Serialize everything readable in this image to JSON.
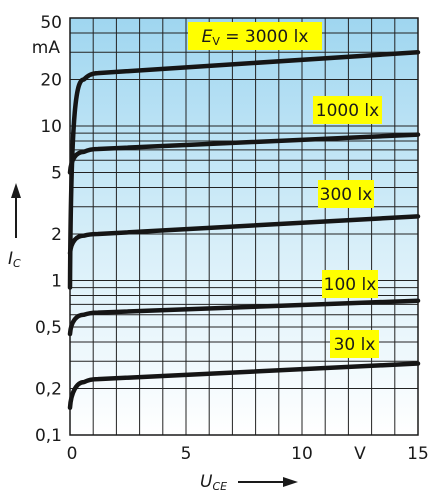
{
  "chart_data": {
    "type": "line",
    "yscale": "log",
    "xlim": [
      0,
      15
    ],
    "ylim": [
      0.1,
      50
    ],
    "xticks": [
      "0",
      "5",
      "10",
      "V",
      "15"
    ],
    "yticks": [
      "50",
      "20",
      "10",
      "5",
      "2",
      "1",
      "0,5",
      "0,2",
      "0,1"
    ],
    "ytick_unit": "mA",
    "xlabel": "U",
    "xlabel_sub": "CE",
    "ylabel": "I",
    "ylabel_sub": "C",
    "grid": true,
    "colors": {
      "background_top": "#9fd6f0",
      "background_bottom": "#ffffff",
      "label_box": "#ffff00",
      "curve": "#151515"
    },
    "series": [
      {
        "label": "E_V = 3000 lx",
        "x": [
          0,
          0.3,
          0.6,
          1.2,
          15
        ],
        "y": [
          0.9,
          15,
          20,
          22,
          30
        ]
      },
      {
        "label": "1000 lx",
        "x": [
          0,
          0.3,
          0.6,
          1.2,
          15
        ],
        "y": [
          5,
          6.2,
          6.8,
          7.1,
          8.8
        ]
      },
      {
        "label": "300 lx",
        "x": [
          0,
          0.3,
          0.6,
          1.2,
          15
        ],
        "y": [
          1.5,
          1.8,
          1.95,
          2.0,
          2.6
        ]
      },
      {
        "label": "100 lx",
        "x": [
          0,
          0.3,
          0.6,
          1.2,
          15
        ],
        "y": [
          0.45,
          0.55,
          0.6,
          0.62,
          0.74
        ]
      },
      {
        "label": "30 lx",
        "x": [
          0,
          0.3,
          0.6,
          1.2,
          15
        ],
        "y": [
          0.15,
          0.19,
          0.22,
          0.23,
          0.29
        ]
      }
    ],
    "curve_labels": [
      {
        "prefix": "E",
        "prefix_sub": "V",
        "text": " = 3000 lx"
      },
      {
        "text": "1000 lx"
      },
      {
        "text": "300 lx"
      },
      {
        "text": "100 lx"
      },
      {
        "text": "30 lx"
      }
    ]
  }
}
